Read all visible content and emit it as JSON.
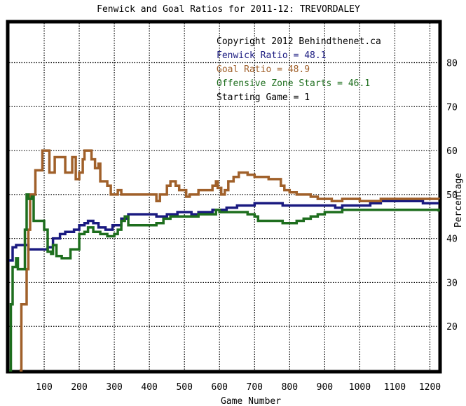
{
  "chart_data": {
    "type": "line",
    "title": "Fenwick and Goal Ratios for 2011-12: TREVORDALEY",
    "xlabel": "Game Number",
    "ylabel": "Percentage",
    "xlim": [
      0,
      1225
    ],
    "ylim": [
      10,
      89
    ],
    "xticks": [
      100,
      200,
      300,
      400,
      500,
      600,
      700,
      800,
      900,
      1000,
      1100,
      1200
    ],
    "yticks": [
      20,
      30,
      40,
      50,
      60,
      70,
      80
    ],
    "grid": true,
    "legend_position": "top-right",
    "legend": {
      "copyright": "Copyright 2012 Behindthenet.ca",
      "lines": [
        {
          "text": "Fenwick Ratio = 48.1",
          "color": "#1a1a80"
        },
        {
          "text": "Goal Ratio = 48.9",
          "color": "#a0602a"
        },
        {
          "text": "Offensive Zone Starts = 46.1",
          "color": "#1e6e1e"
        },
        {
          "text": "Starting Game = 1",
          "color": "#000000"
        }
      ]
    },
    "series": [
      {
        "color": "#1a1a80",
        "points": [
          [
            0,
            35
          ],
          [
            10,
            38
          ],
          [
            20,
            38.5
          ],
          [
            45,
            38.5
          ],
          [
            55,
            37.5
          ],
          [
            70,
            37.5
          ],
          [
            95,
            37.5
          ],
          [
            110,
            38
          ],
          [
            125,
            40
          ],
          [
            145,
            41
          ],
          [
            160,
            41.5
          ],
          [
            185,
            42
          ],
          [
            200,
            43
          ],
          [
            215,
            43.5
          ],
          [
            225,
            44
          ],
          [
            240,
            43.5
          ],
          [
            255,
            42.5
          ],
          [
            275,
            42
          ],
          [
            295,
            43
          ],
          [
            305,
            43
          ],
          [
            320,
            44.5
          ],
          [
            340,
            45.5
          ],
          [
            360,
            45.5
          ],
          [
            380,
            45.5
          ],
          [
            400,
            45.5
          ],
          [
            420,
            45
          ],
          [
            450,
            45.5
          ],
          [
            480,
            46
          ],
          [
            500,
            46
          ],
          [
            520,
            45.5
          ],
          [
            540,
            46
          ],
          [
            560,
            46
          ],
          [
            580,
            46.5
          ],
          [
            600,
            46.5
          ],
          [
            620,
            47
          ],
          [
            650,
            47.5
          ],
          [
            680,
            47.5
          ],
          [
            700,
            48
          ],
          [
            720,
            48
          ],
          [
            750,
            48
          ],
          [
            780,
            47.5
          ],
          [
            800,
            47.5
          ],
          [
            830,
            47.5
          ],
          [
            860,
            47.5
          ],
          [
            880,
            47.5
          ],
          [
            900,
            47.5
          ],
          [
            930,
            47
          ],
          [
            950,
            47.5
          ],
          [
            980,
            47.5
          ],
          [
            1000,
            47.5
          ],
          [
            1030,
            48
          ],
          [
            1060,
            48.5
          ],
          [
            1080,
            48.5
          ],
          [
            1100,
            48.5
          ],
          [
            1130,
            48.5
          ],
          [
            1150,
            48.5
          ],
          [
            1180,
            48
          ],
          [
            1200,
            48
          ],
          [
            1225,
            48
          ]
        ]
      },
      {
        "color": "#a0602a",
        "points": [
          [
            30,
            10
          ],
          [
            35,
            25
          ],
          [
            45,
            25
          ],
          [
            50,
            33
          ],
          [
            55,
            42
          ],
          [
            60,
            50
          ],
          [
            65,
            50
          ],
          [
            75,
            55.5
          ],
          [
            90,
            55.5
          ],
          [
            95,
            60
          ],
          [
            110,
            60
          ],
          [
            115,
            55
          ],
          [
            125,
            55
          ],
          [
            130,
            58.5
          ],
          [
            150,
            58.5
          ],
          [
            160,
            55
          ],
          [
            170,
            55
          ],
          [
            180,
            58.5
          ],
          [
            190,
            53.5
          ],
          [
            200,
            55
          ],
          [
            210,
            58
          ],
          [
            215,
            60
          ],
          [
            225,
            60
          ],
          [
            235,
            58
          ],
          [
            245,
            56
          ],
          [
            255,
            57
          ],
          [
            260,
            53
          ],
          [
            270,
            53
          ],
          [
            280,
            52
          ],
          [
            290,
            50
          ],
          [
            300,
            50
          ],
          [
            310,
            51
          ],
          [
            320,
            50
          ],
          [
            340,
            50
          ],
          [
            360,
            50
          ],
          [
            380,
            50
          ],
          [
            400,
            50
          ],
          [
            420,
            48.5
          ],
          [
            430,
            50
          ],
          [
            440,
            50
          ],
          [
            450,
            52
          ],
          [
            460,
            53
          ],
          [
            475,
            52
          ],
          [
            485,
            51
          ],
          [
            495,
            51
          ],
          [
            505,
            49.5
          ],
          [
            515,
            50
          ],
          [
            525,
            50
          ],
          [
            540,
            51
          ],
          [
            560,
            51
          ],
          [
            570,
            51
          ],
          [
            580,
            52
          ],
          [
            590,
            53
          ],
          [
            595,
            51.5
          ],
          [
            605,
            50
          ],
          [
            615,
            51
          ],
          [
            625,
            53
          ],
          [
            640,
            54
          ],
          [
            655,
            55
          ],
          [
            680,
            54.5
          ],
          [
            700,
            54
          ],
          [
            720,
            54
          ],
          [
            740,
            53.5
          ],
          [
            760,
            53.5
          ],
          [
            775,
            52
          ],
          [
            785,
            51
          ],
          [
            800,
            50.5
          ],
          [
            820,
            50
          ],
          [
            840,
            50
          ],
          [
            860,
            49.5
          ],
          [
            880,
            49
          ],
          [
            900,
            49
          ],
          [
            920,
            48.5
          ],
          [
            950,
            49
          ],
          [
            980,
            49
          ],
          [
            1000,
            48.5
          ],
          [
            1030,
            48.5
          ],
          [
            1060,
            49
          ],
          [
            1090,
            49
          ],
          [
            1120,
            49
          ],
          [
            1150,
            49
          ],
          [
            1180,
            49
          ],
          [
            1200,
            49
          ],
          [
            1225,
            48.9
          ]
        ]
      },
      {
        "color": "#1e6e1e",
        "points": [
          [
            0,
            10
          ],
          [
            5,
            25
          ],
          [
            10,
            33.5
          ],
          [
            20,
            35.5
          ],
          [
            25,
            33
          ],
          [
            35,
            33
          ],
          [
            45,
            42
          ],
          [
            50,
            50
          ],
          [
            55,
            49
          ],
          [
            65,
            49.5
          ],
          [
            70,
            44
          ],
          [
            85,
            44
          ],
          [
            95,
            44
          ],
          [
            100,
            42
          ],
          [
            110,
            37
          ],
          [
            120,
            36.5
          ],
          [
            125,
            38.5
          ],
          [
            135,
            36
          ],
          [
            150,
            35.5
          ],
          [
            165,
            35.5
          ],
          [
            175,
            37.5
          ],
          [
            190,
            37.5
          ],
          [
            200,
            41
          ],
          [
            215,
            41.5
          ],
          [
            225,
            42.5
          ],
          [
            240,
            41.5
          ],
          [
            260,
            41
          ],
          [
            280,
            40.5
          ],
          [
            300,
            41
          ],
          [
            310,
            42
          ],
          [
            320,
            44
          ],
          [
            330,
            45
          ],
          [
            340,
            43
          ],
          [
            360,
            43
          ],
          [
            380,
            43
          ],
          [
            400,
            43
          ],
          [
            420,
            43.5
          ],
          [
            440,
            44.5
          ],
          [
            460,
            45
          ],
          [
            480,
            45
          ],
          [
            500,
            45
          ],
          [
            520,
            45
          ],
          [
            540,
            45.5
          ],
          [
            560,
            45.5
          ],
          [
            580,
            45.5
          ],
          [
            590,
            46.5
          ],
          [
            600,
            46
          ],
          [
            620,
            46
          ],
          [
            640,
            46
          ],
          [
            660,
            46
          ],
          [
            680,
            45.5
          ],
          [
            700,
            45
          ],
          [
            710,
            44
          ],
          [
            730,
            44
          ],
          [
            760,
            44
          ],
          [
            780,
            43.5
          ],
          [
            800,
            43.5
          ],
          [
            820,
            44
          ],
          [
            840,
            44.5
          ],
          [
            860,
            45
          ],
          [
            880,
            45.5
          ],
          [
            900,
            46
          ],
          [
            930,
            46
          ],
          [
            950,
            46.5
          ],
          [
            980,
            46.5
          ],
          [
            1000,
            46.5
          ],
          [
            1050,
            46.5
          ],
          [
            1100,
            46.5
          ],
          [
            1150,
            46.5
          ],
          [
            1200,
            46.5
          ],
          [
            1225,
            46.1
          ]
        ]
      }
    ]
  }
}
